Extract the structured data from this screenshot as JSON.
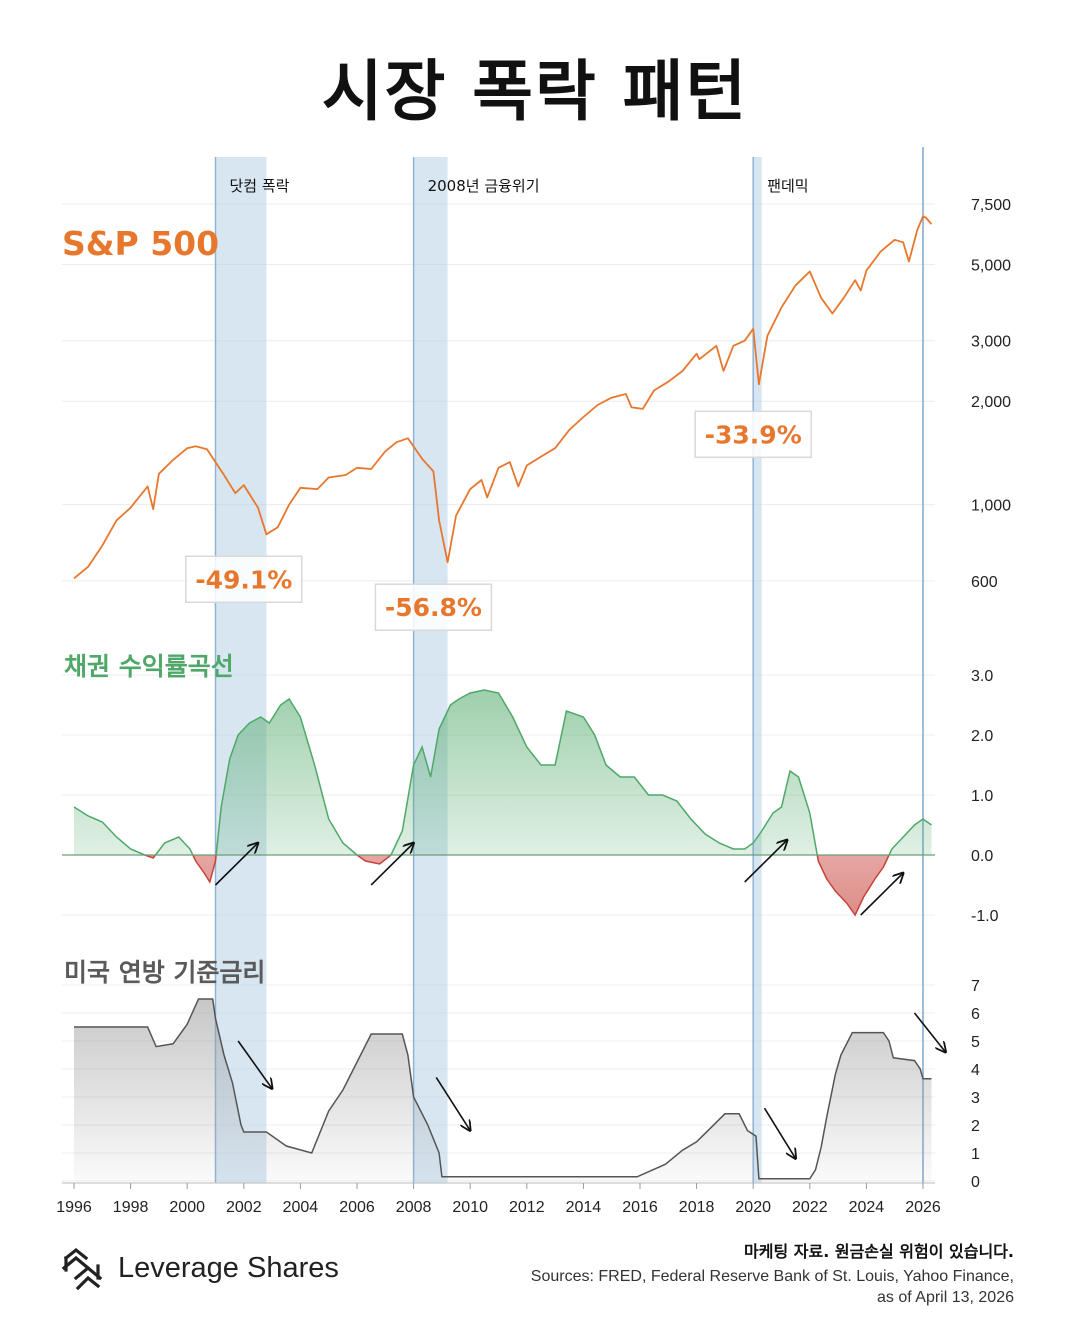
{
  "title": "시장 폭락 패턴",
  "colors": {
    "sp500": "#e8772e",
    "yield_positive": "#4fa868",
    "yield_negative": "#c8423a",
    "fed_rate": "#555555",
    "band": "#b8d1e8",
    "band_edge": "#8fb3d4"
  },
  "events": [
    {
      "label": "닷컴 폭락",
      "start": 2001.0,
      "end": 2002.8
    },
    {
      "label": "2008년 금융위기",
      "start": 2008.0,
      "end": 2009.2
    },
    {
      "label": "팬데믹",
      "start": 2020.0,
      "end": 2020.3
    }
  ],
  "marker_year": 2026.0,
  "chart_data": [
    {
      "type": "line",
      "title": "S&P 500",
      "scale": "log",
      "yticks": [
        "7,500",
        "5,000",
        "3,000",
        "2,000",
        "1,000",
        "600"
      ],
      "ytick_values": [
        7500,
        5000,
        3000,
        2000,
        1000,
        600
      ],
      "xlim": [
        1996,
        2026.3
      ],
      "x": [
        1996.0,
        1996.5,
        1997.0,
        1997.5,
        1998.0,
        1998.6,
        1998.8,
        1999.0,
        1999.5,
        2000.0,
        2000.3,
        2000.7,
        2001.0,
        2001.3,
        2001.7,
        2002.0,
        2002.5,
        2002.8,
        2003.2,
        2003.6,
        2004.0,
        2004.6,
        2005.0,
        2005.6,
        2006.0,
        2006.5,
        2007.0,
        2007.4,
        2007.8,
        2008.3,
        2008.7,
        2008.9,
        2009.2,
        2009.5,
        2010.0,
        2010.4,
        2010.6,
        2011.0,
        2011.4,
        2011.7,
        2012.0,
        2012.5,
        2013.0,
        2013.5,
        2014.0,
        2014.5,
        2015.0,
        2015.5,
        2015.7,
        2016.1,
        2016.5,
        2017.0,
        2017.5,
        2018.0,
        2018.1,
        2018.7,
        2018.95,
        2019.3,
        2019.7,
        2020.0,
        2020.2,
        2020.5,
        2021.0,
        2021.5,
        2022.0,
        2022.4,
        2022.8,
        2023.2,
        2023.6,
        2023.8,
        2024.0,
        2024.5,
        2025.0,
        2025.3,
        2025.5,
        2025.8,
        2026.0,
        2026.1,
        2026.3
      ],
      "y": [
        610,
        660,
        760,
        900,
        980,
        1130,
        970,
        1230,
        1350,
        1460,
        1480,
        1450,
        1330,
        1220,
        1080,
        1140,
        980,
        820,
        860,
        1000,
        1120,
        1110,
        1200,
        1220,
        1280,
        1270,
        1430,
        1520,
        1560,
        1360,
        1250,
        900,
        680,
        930,
        1110,
        1180,
        1050,
        1280,
        1330,
        1130,
        1300,
        1380,
        1460,
        1650,
        1800,
        1950,
        2050,
        2100,
        1920,
        1900,
        2150,
        2280,
        2450,
        2750,
        2650,
        2900,
        2450,
        2900,
        3000,
        3250,
        2240,
        3100,
        3750,
        4350,
        4770,
        4000,
        3600,
        4000,
        4500,
        4200,
        4800,
        5450,
        5900,
        5800,
        5100,
        6300,
        6900,
        6850,
        6550
      ],
      "annotations": [
        {
          "text": "-49.1%",
          "x": 2002.0,
          "y": 820
        },
        {
          "text": "-56.8%",
          "x": 2008.7,
          "y": 680
        },
        {
          "text": "-33.9%",
          "x": 2020.0,
          "y": 2240
        }
      ]
    },
    {
      "type": "area",
      "title": "채권 수익률곡선",
      "yticks": [
        "3.0",
        "2.0",
        "1.0",
        "0.0",
        "-1.0"
      ],
      "ytick_values": [
        3,
        2,
        1,
        0,
        -1
      ],
      "x": [
        1996.0,
        1996.5,
        1997.0,
        1997.5,
        1998.0,
        1998.5,
        1998.8,
        1999.2,
        1999.7,
        2000.1,
        2000.3,
        2000.6,
        2000.8,
        2001.0,
        2001.2,
        2001.5,
        2001.8,
        2002.2,
        2002.6,
        2002.9,
        2003.3,
        2003.6,
        2004.0,
        2004.5,
        2005.0,
        2005.5,
        2006.0,
        2006.3,
        2006.8,
        2007.2,
        2007.6,
        2008.0,
        2008.3,
        2008.6,
        2008.9,
        2009.3,
        2009.6,
        2010.0,
        2010.5,
        2011.0,
        2011.5,
        2012.0,
        2012.5,
        2013.0,
        2013.4,
        2014.0,
        2014.4,
        2014.8,
        2015.3,
        2015.8,
        2016.3,
        2016.8,
        2017.3,
        2017.8,
        2018.3,
        2018.8,
        2019.3,
        2019.7,
        2020.0,
        2020.3,
        2020.7,
        2021.0,
        2021.3,
        2021.6,
        2022.0,
        2022.3,
        2022.6,
        2022.9,
        2023.3,
        2023.6,
        2023.9,
        2024.3,
        2024.6,
        2024.9,
        2025.3,
        2025.7,
        2026.0,
        2026.3
      ],
      "y": [
        0.8,
        0.65,
        0.55,
        0.3,
        0.1,
        0.0,
        -0.05,
        0.2,
        0.3,
        0.1,
        -0.1,
        -0.3,
        -0.45,
        -0.1,
        0.8,
        1.6,
        2.0,
        2.2,
        2.3,
        2.2,
        2.5,
        2.6,
        2.3,
        1.5,
        0.6,
        0.2,
        0.0,
        -0.1,
        -0.15,
        0.0,
        0.4,
        1.5,
        1.8,
        1.3,
        2.1,
        2.5,
        2.6,
        2.7,
        2.75,
        2.7,
        2.3,
        1.8,
        1.5,
        1.5,
        2.4,
        2.3,
        2.0,
        1.5,
        1.3,
        1.3,
        1.0,
        1.0,
        0.9,
        0.6,
        0.35,
        0.2,
        0.1,
        0.1,
        0.2,
        0.4,
        0.7,
        0.8,
        1.4,
        1.3,
        0.7,
        -0.1,
        -0.4,
        -0.6,
        -0.8,
        -1.0,
        -0.7,
        -0.4,
        -0.2,
        0.1,
        0.3,
        0.5,
        0.6,
        0.5
      ]
    },
    {
      "type": "area",
      "title": "미국 연방 기준금리",
      "yticks": [
        "7",
        "6",
        "5",
        "4",
        "3",
        "2",
        "1",
        "0"
      ],
      "ytick_values": [
        7,
        6,
        5,
        4,
        3,
        2,
        1,
        0
      ],
      "x": [
        1996.0,
        1997.0,
        1998.0,
        1998.6,
        1998.9,
        1999.5,
        2000.0,
        2000.4,
        2000.9,
        2001.0,
        2001.3,
        2001.6,
        2001.9,
        2002.0,
        2002.8,
        2003.5,
        2004.4,
        2005.0,
        2005.5,
        2006.5,
        2007.6,
        2007.8,
        2008.0,
        2008.5,
        2008.9,
        2009.0,
        2015.9,
        2016.9,
        2017.5,
        2018.0,
        2018.5,
        2019.0,
        2019.5,
        2019.8,
        2020.1,
        2020.2,
        2022.0,
        2022.2,
        2022.4,
        2022.6,
        2022.9,
        2023.1,
        2023.5,
        2024.6,
        2024.8,
        2024.95,
        2025.7,
        2025.9,
        2026.0,
        2026.3
      ],
      "y": [
        5.5,
        5.5,
        5.5,
        5.5,
        4.8,
        4.9,
        5.6,
        6.5,
        6.5,
        5.8,
        4.5,
        3.5,
        2.0,
        1.75,
        1.75,
        1.25,
        1.0,
        2.5,
        3.25,
        5.25,
        5.25,
        4.5,
        3.0,
        2.0,
        1.0,
        0.15,
        0.15,
        0.6,
        1.1,
        1.4,
        1.9,
        2.4,
        2.4,
        1.8,
        1.6,
        0.08,
        0.08,
        0.4,
        1.2,
        2.3,
        3.8,
        4.5,
        5.3,
        5.3,
        5.0,
        4.4,
        4.3,
        4.0,
        3.65,
        3.65
      ],
      "arrows": [
        {
          "x1": 2001.8,
          "y1": 5.0,
          "x2": 2003.0,
          "y2": 3.3
        },
        {
          "x1": 2008.8,
          "y1": 3.7,
          "x2": 2010.0,
          "y2": 1.8
        },
        {
          "x1": 2020.4,
          "y1": 2.6,
          "x2": 2021.5,
          "y2": 0.8
        },
        {
          "x1": 2025.7,
          "y1": 6.0,
          "x2": 2026.8,
          "y2": 4.6
        }
      ]
    }
  ],
  "x_axis": {
    "ticks": [
      "1996",
      "1998",
      "2000",
      "2002",
      "2004",
      "2006",
      "2008",
      "2010",
      "2012",
      "2014",
      "2016",
      "2018",
      "2020",
      "2022",
      "2024",
      "2026"
    ],
    "tick_values": [
      1996,
      1998,
      2000,
      2002,
      2004,
      2006,
      2008,
      2010,
      2012,
      2014,
      2016,
      2018,
      2020,
      2022,
      2024,
      2026
    ]
  },
  "yield_arrows": [
    {
      "x1": 2001.0,
      "y1": -0.5,
      "x2": 2002.5,
      "y2": 0.2
    },
    {
      "x1": 2006.5,
      "y1": -0.5,
      "x2": 2008.0,
      "y2": 0.2
    },
    {
      "x1": 2019.7,
      "y1": -0.45,
      "x2": 2021.2,
      "y2": 0.25
    },
    {
      "x1": 2023.8,
      "y1": -1.0,
      "x2": 2025.3,
      "y2": -0.3
    }
  ],
  "footer": {
    "brand": "Leverage Shares",
    "disclaimer": "마케팅 자료. 원금손실 위험이 있습니다.",
    "sources_line1": "Sources: FRED, Federal Reserve Bank of St. Louis, Yahoo Finance,",
    "sources_line2": "as of April 13, 2026"
  }
}
